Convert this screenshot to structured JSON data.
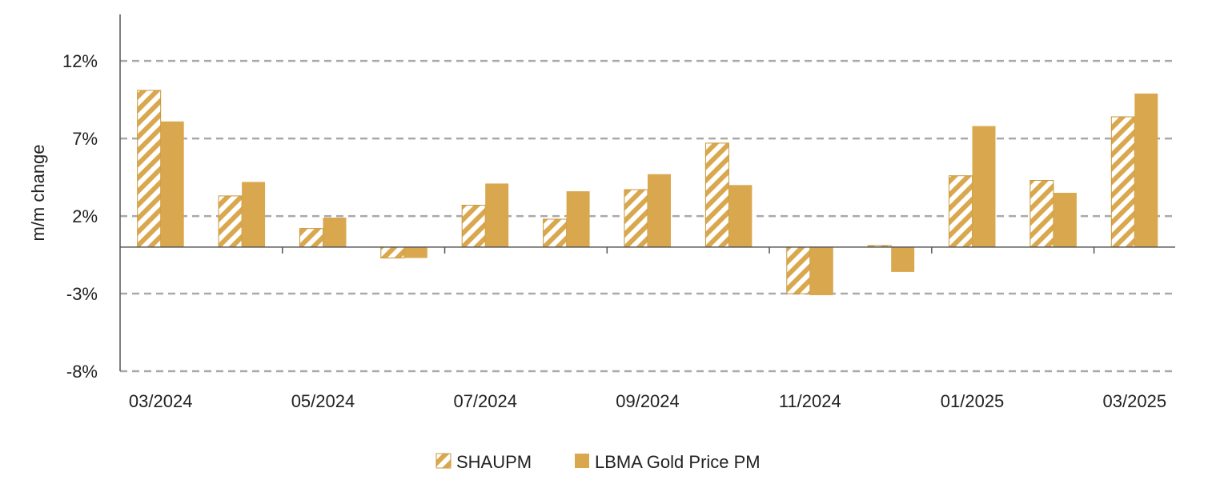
{
  "colors": {
    "gold": "#D9A84E",
    "gold_edge": "#C9963A",
    "grid": "#A9A9A9",
    "axis": "#555555",
    "text": "#222222"
  },
  "chart_data": {
    "type": "bar",
    "title": "",
    "xlabel": "",
    "ylabel": "m/m change",
    "ylim": [
      -8,
      15
    ],
    "yticks": [
      -8,
      -3,
      2,
      7,
      12
    ],
    "ytick_labels": [
      "-8%",
      "-3%",
      "2%",
      "7%",
      "12%"
    ],
    "grid": "horizontal dashed",
    "legend_position": "bottom-center",
    "categories": [
      "03/2024",
      "04/2024",
      "05/2024",
      "06/2024",
      "07/2024",
      "08/2024",
      "09/2024",
      "10/2024",
      "11/2024",
      "12/2024",
      "01/2025",
      "02/2025",
      "03/2025"
    ],
    "xtick_labels": [
      "03/2024",
      "",
      "05/2024",
      "",
      "07/2024",
      "",
      "09/2024",
      "",
      "11/2024",
      "",
      "01/2025",
      "",
      "03/2025"
    ],
    "series": [
      {
        "name": "SHAUPM",
        "pattern": "hatched",
        "values": [
          10.1,
          3.3,
          1.2,
          -0.7,
          2.7,
          1.8,
          3.7,
          6.7,
          -3.0,
          0.1,
          4.6,
          4.3,
          8.4
        ]
      },
      {
        "name": "LBMA Gold Price PM",
        "pattern": "solid",
        "values": [
          8.1,
          4.2,
          1.9,
          -0.7,
          4.1,
          3.6,
          4.7,
          4.0,
          -3.1,
          -1.6,
          7.8,
          3.5,
          9.9
        ]
      }
    ]
  }
}
